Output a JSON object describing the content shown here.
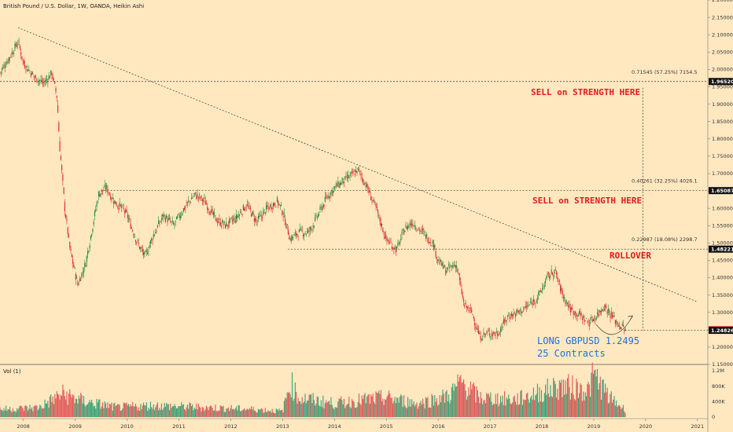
{
  "header": {
    "title": "British Pound / U.S. Dollar, 1W, OANDA, Heikin Ashi"
  },
  "volume_pane": {
    "label": "Vol (1)",
    "ticks": [
      "1.2M",
      "800K",
      "400K",
      "0"
    ],
    "tick_values": [
      1200000,
      800000,
      400000,
      0
    ]
  },
  "colors": {
    "background": "#ffe8c0",
    "up": "#1f8a3a",
    "down": "#e02626",
    "annotation_red": "#e11b1b",
    "annotation_blue": "#1e6fd9",
    "vol_up": "#3aa37a",
    "vol_down": "#e05a5a"
  },
  "annotations": {
    "sell_1": "SELL on STRENGTH HERE",
    "sell_2": "SELL on STRENGTH HERE",
    "rollover": "ROLLOVER",
    "long_1": "LONG GBPUSD 1.2495",
    "long_2": "25 Contracts"
  },
  "fib_labels": [
    {
      "text": "0.71545 (57.25%) 7154.5",
      "price": 1.9652
    },
    {
      "text": "0.40261 (32.25%) 4026.1",
      "price": 1.65087
    },
    {
      "text": "0.22987 (18.08%) 2298.7",
      "price": 1.48221
    }
  ],
  "price_tags": [
    {
      "text": "1.96520",
      "price": 1.9652,
      "style": "dark"
    },
    {
      "text": "1.65087",
      "price": 1.65087,
      "style": "dark"
    },
    {
      "text": "1.48221",
      "price": 1.48221,
      "style": "dark"
    },
    {
      "text": "1.25019",
      "price": 1.25019,
      "style": "red"
    },
    {
      "text": "1.24865",
      "price": 1.24865,
      "style": "red"
    },
    {
      "text": "1.24826",
      "price": 1.24826,
      "style": "dark"
    }
  ],
  "chart_data": {
    "type": "candlestick",
    "title": "British Pound / U.S. Dollar, 1W, OANDA, Heikin Ashi",
    "x_ticks": [
      "2008",
      "2009",
      "2010",
      "2011",
      "2012",
      "2013",
      "2014",
      "2015",
      "2016",
      "2017",
      "2018",
      "2019",
      "2020",
      "2021"
    ],
    "y_ticks": [
      "2.20000",
      "2.15000",
      "2.10000",
      "2.05000",
      "2.00000",
      "1.95000",
      "1.90000",
      "1.85000",
      "1.80000",
      "1.75000",
      "1.70000",
      "1.65000",
      "1.60000",
      "1.55000",
      "1.50000",
      "1.45000",
      "1.40000",
      "1.35000",
      "1.30000",
      "1.25000",
      "1.20000",
      "1.15000"
    ],
    "ylim": [
      1.15,
      2.2
    ],
    "xlim": [
      2007.55,
      2021.2
    ],
    "price_path": [
      [
        2007.55,
        1.99
      ],
      [
        2007.75,
        2.04
      ],
      [
        2007.9,
        2.08
      ],
      [
        2008.0,
        2.02
      ],
      [
        2008.2,
        1.98
      ],
      [
        2008.4,
        1.96
      ],
      [
        2008.55,
        1.99
      ],
      [
        2008.65,
        1.92
      ],
      [
        2008.7,
        1.78
      ],
      [
        2008.8,
        1.6
      ],
      [
        2008.9,
        1.48
      ],
      [
        2009.05,
        1.38
      ],
      [
        2009.2,
        1.44
      ],
      [
        2009.35,
        1.56
      ],
      [
        2009.45,
        1.64
      ],
      [
        2009.6,
        1.66
      ],
      [
        2009.75,
        1.62
      ],
      [
        2009.9,
        1.6
      ],
      [
        2010.0,
        1.58
      ],
      [
        2010.2,
        1.5
      ],
      [
        2010.35,
        1.46
      ],
      [
        2010.5,
        1.52
      ],
      [
        2010.7,
        1.58
      ],
      [
        2010.9,
        1.55
      ],
      [
        2011.1,
        1.6
      ],
      [
        2011.3,
        1.64
      ],
      [
        2011.5,
        1.62
      ],
      [
        2011.7,
        1.57
      ],
      [
        2011.9,
        1.55
      ],
      [
        2012.1,
        1.57
      ],
      [
        2012.3,
        1.61
      ],
      [
        2012.5,
        1.56
      ],
      [
        2012.7,
        1.6
      ],
      [
        2012.9,
        1.62
      ],
      [
        2013.0,
        1.59
      ],
      [
        2013.15,
        1.51
      ],
      [
        2013.3,
        1.53
      ],
      [
        2013.5,
        1.53
      ],
      [
        2013.65,
        1.57
      ],
      [
        2013.85,
        1.63
      ],
      [
        2014.0,
        1.66
      ],
      [
        2014.2,
        1.68
      ],
      [
        2014.45,
        1.71
      ],
      [
        2014.6,
        1.67
      ],
      [
        2014.8,
        1.6
      ],
      [
        2015.0,
        1.51
      ],
      [
        2015.2,
        1.48
      ],
      [
        2015.35,
        1.54
      ],
      [
        2015.5,
        1.56
      ],
      [
        2015.7,
        1.53
      ],
      [
        2015.9,
        1.5
      ],
      [
        2016.0,
        1.45
      ],
      [
        2016.15,
        1.42
      ],
      [
        2016.35,
        1.44
      ],
      [
        2016.5,
        1.32
      ],
      [
        2016.65,
        1.3
      ],
      [
        2016.8,
        1.23
      ],
      [
        2016.95,
        1.24
      ],
      [
        2017.15,
        1.24
      ],
      [
        2017.35,
        1.29
      ],
      [
        2017.55,
        1.3
      ],
      [
        2017.75,
        1.32
      ],
      [
        2017.95,
        1.35
      ],
      [
        2018.1,
        1.4
      ],
      [
        2018.25,
        1.42
      ],
      [
        2018.4,
        1.35
      ],
      [
        2018.55,
        1.31
      ],
      [
        2018.75,
        1.29
      ],
      [
        2018.9,
        1.27
      ],
      [
        2019.05,
        1.29
      ],
      [
        2019.2,
        1.32
      ],
      [
        2019.35,
        1.29
      ],
      [
        2019.45,
        1.27
      ],
      [
        2019.6,
        1.25
      ]
    ],
    "volume_path": [
      [
        2007.55,
        200000
      ],
      [
        2008.3,
        250000
      ],
      [
        2008.75,
        600000
      ],
      [
        2009.2,
        400000
      ],
      [
        2009.8,
        250000
      ],
      [
        2010.5,
        300000
      ],
      [
        2011.5,
        250000
      ],
      [
        2012.5,
        200000
      ],
      [
        2013.0,
        150000
      ],
      [
        2013.15,
        900000
      ],
      [
        2013.3,
        500000
      ],
      [
        2014.0,
        350000
      ],
      [
        2014.6,
        450000
      ],
      [
        2015.0,
        500000
      ],
      [
        2015.6,
        350000
      ],
      [
        2016.2,
        550000
      ],
      [
        2016.45,
        900000
      ],
      [
        2016.8,
        500000
      ],
      [
        2017.5,
        450000
      ],
      [
        2018.0,
        650000
      ],
      [
        2018.35,
        800000
      ],
      [
        2018.9,
        700000
      ],
      [
        2019.0,
        1100000
      ],
      [
        2019.3,
        500000
      ],
      [
        2019.6,
        200000
      ]
    ],
    "trendline": {
      "from": [
        2007.9,
        2.12
      ],
      "to": [
        2021.0,
        1.33
      ]
    },
    "fib_levels": [
      1.9652,
      1.65087,
      1.48221,
      1.24826
    ],
    "arrow_curve": {
      "from": [
        2019.05,
        1.265
      ],
      "to": [
        2019.75,
        1.29
      ]
    }
  }
}
